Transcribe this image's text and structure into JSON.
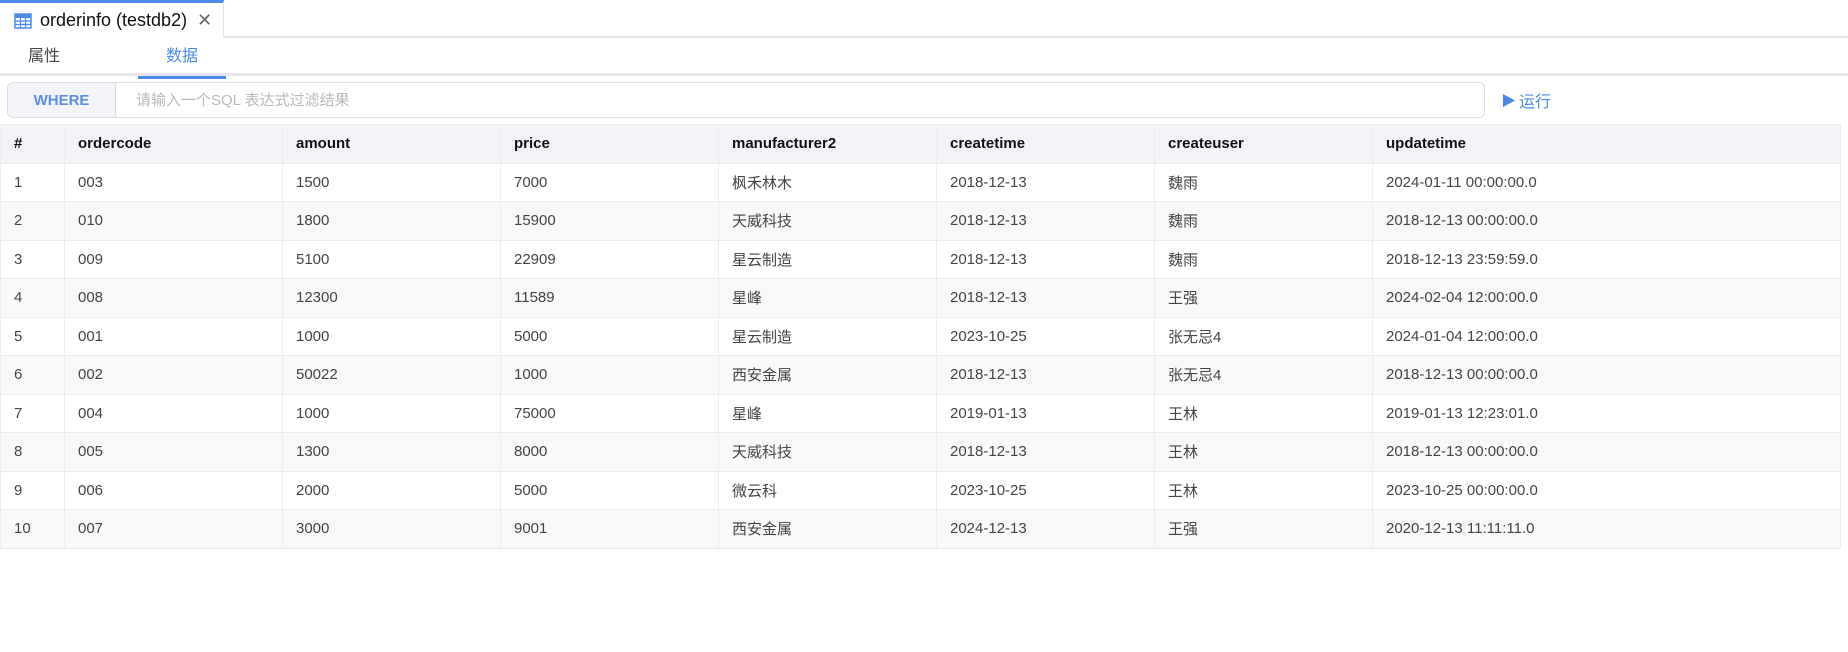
{
  "tab": {
    "title": "orderinfo (testdb2)",
    "icon": "table-icon"
  },
  "subtabs": [
    {
      "label": "属性"
    },
    {
      "label": "数据"
    }
  ],
  "filter": {
    "where_label": "WHERE",
    "placeholder": "请输入一个SQL 表达式过滤结果",
    "value": ""
  },
  "run": {
    "label": "运行",
    "icon": "play-icon"
  },
  "colors": {
    "accent": "#4a8ae6"
  },
  "table": {
    "columns": [
      "#",
      "ordercode",
      "amount",
      "price",
      "manufacturer2",
      "createtime",
      "createuser",
      "updatetime"
    ],
    "rows": [
      [
        "1",
        "003",
        "1500",
        "7000",
        "枫禾林木",
        "2018-12-13",
        "魏雨",
        "2024-01-11 00:00:00.0"
      ],
      [
        "2",
        "010",
        "1800",
        "15900",
        "天威科技",
        "2018-12-13",
        "魏雨",
        "2018-12-13 00:00:00.0"
      ],
      [
        "3",
        "009",
        "5100",
        "22909",
        "星云制造",
        "2018-12-13",
        "魏雨",
        "2018-12-13 23:59:59.0"
      ],
      [
        "4",
        "008",
        "12300",
        "11589",
        "星峰",
        "2018-12-13",
        "王强",
        "2024-02-04 12:00:00.0"
      ],
      [
        "5",
        "001",
        "1000",
        "5000",
        "星云制造",
        "2023-10-25",
        "张无忌4",
        "2024-01-04 12:00:00.0"
      ],
      [
        "6",
        "002",
        "50022",
        "1000",
        "西安金属",
        "2018-12-13",
        "张无忌4",
        "2018-12-13 00:00:00.0"
      ],
      [
        "7",
        "004",
        "1000",
        "75000",
        "星峰",
        "2019-01-13",
        "王林",
        "2019-01-13 12:23:01.0"
      ],
      [
        "8",
        "005",
        "1300",
        "8000",
        "天威科技",
        "2018-12-13",
        "王林",
        "2018-12-13 00:00:00.0"
      ],
      [
        "9",
        "006",
        "2000",
        "5000",
        "微云科",
        "2023-10-25",
        "王林",
        "2023-10-25 00:00:00.0"
      ],
      [
        "10",
        "007",
        "3000",
        "9001",
        "西安金属",
        "2024-12-13",
        "王强",
        "2020-12-13 11:11:11.0"
      ]
    ]
  }
}
